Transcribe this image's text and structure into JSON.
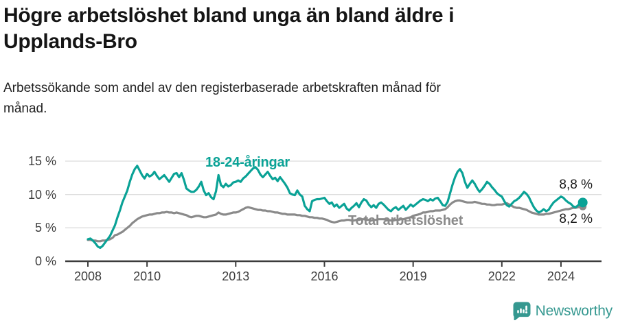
{
  "header": {
    "title": "Högre arbetslöshet bland unga än bland äldre i\nUpplands-Bro",
    "subtitle": "Arbetssökande som andel av den registerbaserade arbetskraften månad för\nmånad."
  },
  "colors": {
    "young_line": "#0aa296",
    "total_line": "#8a8a8a",
    "grid": "#dcdcdc",
    "axis": "#3c3c3c",
    "end_label_text": "#1a1a1a",
    "logo_teal": "#359890"
  },
  "labels": {
    "young_series": "18-24-åringar",
    "total_series": "Total arbetslöshet",
    "young_end_value": "8,8 %",
    "total_end_value": "8,2 %"
  },
  "branding": {
    "name": "Newsworthy"
  },
  "chart_data": {
    "type": "line",
    "title": "Högre arbetslöshet bland unga än bland äldre i Upplands-Bro",
    "subtitle": "Arbetssökande som andel av den registerbaserade arbetskraften månad för månad.",
    "unit": "%",
    "x_start": "2008-01",
    "x_end": "2024-09",
    "x_step_months": 1,
    "ylim": [
      0,
      15.5
    ],
    "grid": "horizontal",
    "legend_position": "inline-labels",
    "y_ticks": [
      {
        "value": 15,
        "label": "15 %"
      },
      {
        "value": 10,
        "label": "10 %"
      },
      {
        "value": 5,
        "label": "5 %"
      },
      {
        "value": 0,
        "label": "0 %"
      }
    ],
    "x_ticks": [
      {
        "year": 2008,
        "label": "2008"
      },
      {
        "year": 2010,
        "label": "2010"
      },
      {
        "year": 2013,
        "label": "2013"
      },
      {
        "year": 2016,
        "label": "2016"
      },
      {
        "year": 2019,
        "label": "2019"
      },
      {
        "year": 2022,
        "label": "2022"
      },
      {
        "year": 2024,
        "label": "2024"
      }
    ],
    "series": [
      {
        "name": "18-24-åringar",
        "color": "#0aa296",
        "last_value_label": "8,8 %",
        "values": [
          3.3,
          3.4,
          3.1,
          2.7,
          2.2,
          2.0,
          2.3,
          2.8,
          3.3,
          3.8,
          4.6,
          5.4,
          6.6,
          7.6,
          8.8,
          9.7,
          10.6,
          11.9,
          13.0,
          13.8,
          14.3,
          13.6,
          12.9,
          12.4,
          13.1,
          12.7,
          12.9,
          13.4,
          12.8,
          12.3,
          12.6,
          12.9,
          12.4,
          11.9,
          12.5,
          13.1,
          13.2,
          12.6,
          13.2,
          12.2,
          10.9,
          10.6,
          10.4,
          10.4,
          10.7,
          11.2,
          11.9,
          10.6,
          9.9,
          10.2,
          9.6,
          9.3,
          10.5,
          12.9,
          11.4,
          11.1,
          11.6,
          11.2,
          11.4,
          11.8,
          11.9,
          12.1,
          11.9,
          12.4,
          12.7,
          13.1,
          13.5,
          13.9,
          14.1,
          13.7,
          13.0,
          12.6,
          13.0,
          13.4,
          12.8,
          12.3,
          12.5,
          12.0,
          12.6,
          12.1,
          11.6,
          11.0,
          10.2,
          10.0,
          9.9,
          10.6,
          10.0,
          9.7,
          8.3,
          7.8,
          7.5,
          9.0,
          9.2,
          9.3,
          9.3,
          9.4,
          9.5,
          9.0,
          8.6,
          8.8,
          8.2,
          8.5,
          8.0,
          8.3,
          8.6,
          7.9,
          7.6,
          8.0,
          8.3,
          8.7,
          8.1,
          8.8,
          9.3,
          9.1,
          8.5,
          8.1,
          8.4,
          8.0,
          8.6,
          8.8,
          8.5,
          8.1,
          7.7,
          7.5,
          7.9,
          8.1,
          7.7,
          8.0,
          8.3,
          7.7,
          8.1,
          8.5,
          8.2,
          8.5,
          8.8,
          9.1,
          9.3,
          9.2,
          9.0,
          9.3,
          9.1,
          9.4,
          9.5,
          9.0,
          8.4,
          8.3,
          8.9,
          10.2,
          11.5,
          12.6,
          13.4,
          13.8,
          13.2,
          11.9,
          11.0,
          11.6,
          12.1,
          11.6,
          10.9,
          10.4,
          10.8,
          11.3,
          11.9,
          11.6,
          11.1,
          10.7,
          10.2,
          9.9,
          9.7,
          9.0,
          8.4,
          8.2,
          8.6,
          9.0,
          9.2,
          9.5,
          9.9,
          10.4,
          10.1,
          9.6,
          8.8,
          8.1,
          7.6,
          7.3,
          7.5,
          7.8,
          7.5,
          7.7,
          8.3,
          8.8,
          9.1,
          9.4,
          9.7,
          9.5,
          9.1,
          8.8,
          8.6,
          8.2,
          8.1,
          8.4,
          8.8
        ]
      },
      {
        "name": "Total arbetslöshet",
        "color": "#8a8a8a",
        "last_value_label": "8,2 %",
        "values": [
          3.2,
          3.2,
          3.1,
          3.1,
          3.0,
          3.0,
          3.1,
          3.1,
          3.2,
          3.3,
          3.5,
          3.9,
          4.0,
          4.2,
          4.4,
          4.7,
          5.0,
          5.3,
          5.7,
          6.0,
          6.3,
          6.5,
          6.7,
          6.8,
          6.9,
          7.0,
          7.0,
          7.1,
          7.2,
          7.2,
          7.3,
          7.3,
          7.4,
          7.3,
          7.3,
          7.2,
          7.3,
          7.2,
          7.1,
          7.0,
          6.9,
          6.7,
          6.6,
          6.7,
          6.8,
          6.8,
          6.7,
          6.6,
          6.6,
          6.7,
          6.8,
          6.9,
          7.0,
          7.3,
          7.1,
          7.0,
          7.0,
          7.1,
          7.2,
          7.3,
          7.3,
          7.4,
          7.6,
          7.8,
          8.0,
          8.1,
          8.0,
          7.9,
          7.8,
          7.7,
          7.7,
          7.6,
          7.6,
          7.5,
          7.5,
          7.4,
          7.3,
          7.3,
          7.2,
          7.1,
          7.1,
          7.0,
          7.0,
          7.0,
          7.0,
          6.9,
          6.9,
          6.8,
          6.8,
          6.7,
          6.6,
          6.6,
          6.5,
          6.5,
          6.4,
          6.4,
          6.3,
          6.2,
          6.0,
          5.9,
          5.8,
          5.9,
          6.0,
          6.1,
          6.1,
          6.2,
          6.2,
          6.1,
          6.1,
          6.2,
          6.2,
          6.3,
          6.3,
          6.2,
          6.2,
          6.1,
          6.2,
          6.2,
          6.3,
          6.3,
          6.3,
          6.2,
          6.2,
          6.1,
          6.1,
          6.2,
          6.2,
          6.3,
          6.3,
          6.4,
          6.5,
          6.6,
          6.8,
          6.9,
          7.0,
          7.1,
          7.3,
          7.3,
          7.4,
          7.5,
          7.5,
          7.6,
          7.6,
          7.6,
          7.7,
          7.8,
          8.1,
          8.5,
          8.8,
          9.0,
          9.1,
          9.1,
          9.0,
          8.9,
          8.8,
          8.8,
          8.8,
          8.9,
          8.8,
          8.7,
          8.6,
          8.6,
          8.5,
          8.5,
          8.4,
          8.4,
          8.5,
          8.5,
          8.5,
          8.6,
          8.7,
          8.5,
          8.3,
          8.1,
          8.0,
          8.0,
          7.9,
          7.8,
          7.7,
          7.5,
          7.3,
          7.2,
          7.1,
          7.0,
          7.0,
          7.0,
          7.1,
          7.1,
          7.2,
          7.3,
          7.4,
          7.5,
          7.6,
          7.7,
          7.8,
          7.8,
          7.9,
          8.0,
          8.0,
          8.1,
          8.2
        ]
      }
    ]
  }
}
